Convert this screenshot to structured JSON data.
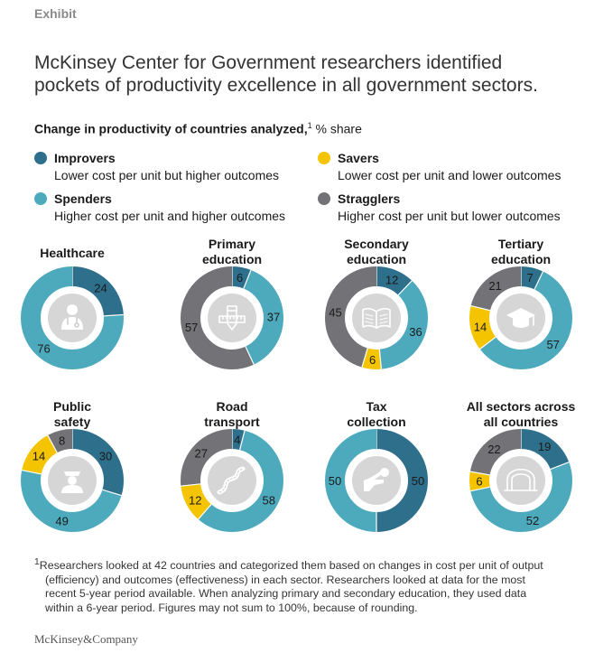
{
  "exhibit_label": "Exhibit",
  "title_line1": "McKinsey Center for Government researchers identified",
  "title_line2": "pockets of productivity excellence in all government sectors.",
  "subtitle": {
    "bold": "Change in productivity of countries analyzed,",
    "sup": "1",
    "rest": " % share"
  },
  "legend": [
    {
      "name": "Improvers",
      "desc": "Lower cost per unit but higher outcomes",
      "color": "#2e6f8c"
    },
    {
      "name": "Savers",
      "desc": "Lower cost per unit and lower outcomes",
      "color": "#f5c400"
    },
    {
      "name": "Spenders",
      "desc": "Higher cost per unit and higher outcomes",
      "color": "#4daabd"
    },
    {
      "name": "Stragglers",
      "desc": "Higher cost per unit but lower outcomes",
      "color": "#737276"
    }
  ],
  "chart_data": {
    "type": "pie",
    "series_names": [
      "Improvers",
      "Spenders",
      "Savers",
      "Stragglers"
    ],
    "colors": {
      "Improvers": "#2e6f8c",
      "Spenders": "#4daabd",
      "Savers": "#f5c400",
      "Stragglers": "#737276"
    },
    "charts": [
      {
        "title_lines": [
          "Healthcare"
        ],
        "icon": "doctor-icon",
        "values": {
          "Improvers": 24,
          "Spenders": 76,
          "Savers": 0,
          "Stragglers": 0
        }
      },
      {
        "title_lines": [
          "Primary",
          "education"
        ],
        "icon": "pencil-ruler-icon",
        "values": {
          "Improvers": 6,
          "Spenders": 37,
          "Savers": 0,
          "Stragglers": 57
        }
      },
      {
        "title_lines": [
          "Secondary",
          "education"
        ],
        "icon": "open-book-icon",
        "values": {
          "Improvers": 12,
          "Spenders": 36,
          "Savers": 6,
          "Stragglers": 45
        }
      },
      {
        "title_lines": [
          "Tertiary",
          "education"
        ],
        "icon": "graduation-cap-icon",
        "values": {
          "Improvers": 7,
          "Spenders": 57,
          "Savers": 14,
          "Stragglers": 21
        }
      },
      {
        "title_lines": [
          "Public",
          "safety"
        ],
        "icon": "police-officer-icon",
        "values": {
          "Improvers": 30,
          "Spenders": 49,
          "Savers": 14,
          "Stragglers": 8
        }
      },
      {
        "title_lines": [
          "Road",
          "transport"
        ],
        "icon": "road-icon",
        "values": {
          "Improvers": 4,
          "Spenders": 58,
          "Savers": 12,
          "Stragglers": 27
        }
      },
      {
        "title_lines": [
          "Tax",
          "collection"
        ],
        "icon": "hand-coin-icon",
        "values": {
          "Improvers": 50,
          "Spenders": 50,
          "Savers": 0,
          "Stragglers": 0
        }
      },
      {
        "title_lines": [
          "All sectors across",
          "all countries"
        ],
        "icon": "arch-icon",
        "values": {
          "Improvers": 19,
          "Spenders": 52,
          "Savers": 6,
          "Stragglers": 22
        }
      }
    ]
  },
  "footnote": {
    "sup": "1",
    "lines": [
      "Researchers looked at 42 countries and categorized them based on changes in cost per unit of output",
      "(efficiency) and outcomes (effectiveness) in each sector. Researchers looked at data for the most",
      "recent 5-year period available. When analyzing primary and secondary education, they used data",
      "within a 6-year period. Figures may not sum to 100%, because of rounding."
    ]
  },
  "brand": "McKinsey&Company"
}
